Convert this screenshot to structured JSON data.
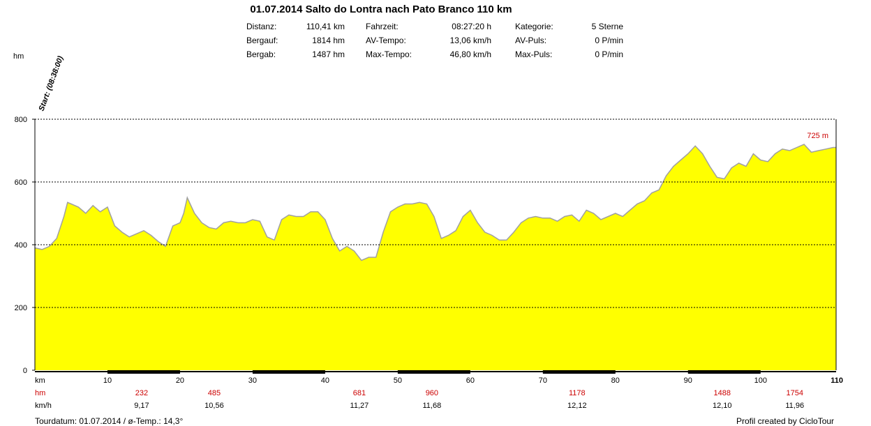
{
  "header": {
    "title": "01.07.2014 Salto do Lontra nach Pato Branco 110 km",
    "stats": [
      [
        {
          "label": "Distanz:",
          "value": "110,41 km"
        },
        {
          "label": "Fahrzeit:",
          "value": "08:27:20 h"
        },
        {
          "label": "Kategorie:",
          "value": "5 Sterne"
        }
      ],
      [
        {
          "label": "Bergauf:",
          "value": "1814 hm"
        },
        {
          "label": "AV-Tempo:",
          "value": "13,06 km/h"
        },
        {
          "label": "AV-Puls:",
          "value": "0 P/min"
        }
      ],
      [
        {
          "label": "Bergab:",
          "value": "1487 hm"
        },
        {
          "label": "Max-Tempo:",
          "value": "46,80 km/h"
        },
        {
          "label": "Max-Puls:",
          "value": "0 P/min"
        }
      ]
    ]
  },
  "start_label": "Start: (08:38:00)",
  "end_label": "725 m",
  "rows": {
    "km_label": "km",
    "hm_label": "hm",
    "speed_label": "km/h",
    "km_ticks": [
      "10",
      "20",
      "30",
      "40",
      "50",
      "60",
      "70",
      "80",
      "90",
      "100",
      "110"
    ],
    "hm_values": [
      "232",
      "485",
      "681",
      "960",
      "1178",
      "1488",
      "1754"
    ],
    "speed_values": [
      "9,17",
      "10,56",
      "11,27",
      "11,68",
      "12,12",
      "12,10",
      "11,96"
    ]
  },
  "footer": {
    "left": "Tourdatum: 01.07.2014  /  ø-Temp.: 14,3°",
    "right": "Profil created by CicloTour"
  },
  "colors": {
    "fill": "#ffff00",
    "line": "#a0a0a0",
    "accent": "#cc0000"
  },
  "chart_data": {
    "type": "area",
    "ylabel": "hm",
    "xlabel": "km",
    "ylim": [
      0,
      800
    ],
    "xlim": [
      0,
      110.41
    ],
    "yticks": [
      0,
      200,
      400,
      600,
      800
    ],
    "xticks": [
      10,
      20,
      30,
      40,
      50,
      60,
      70,
      80,
      90,
      100,
      110
    ],
    "grid": true,
    "x": [
      0,
      1,
      2,
      3,
      4,
      4.5,
      5,
      6,
      7,
      8,
      9,
      10,
      11,
      12,
      13,
      14,
      15,
      16,
      17,
      18,
      19,
      20,
      20.5,
      21,
      22,
      23,
      24,
      25,
      26,
      27,
      28,
      29,
      30,
      31,
      32,
      33,
      34,
      35,
      36,
      37,
      38,
      39,
      40,
      41,
      42,
      43,
      44,
      45,
      46,
      47,
      48,
      49,
      50,
      51,
      52,
      53,
      54,
      55,
      56,
      57,
      58,
      59,
      60,
      61,
      62,
      63,
      64,
      65,
      66,
      67,
      68,
      69,
      70,
      71,
      72,
      73,
      74,
      75,
      76,
      77,
      78,
      79,
      80,
      81,
      82,
      83,
      84,
      85,
      86,
      87,
      88,
      89,
      90,
      91,
      92,
      93,
      94,
      95,
      96,
      97,
      98,
      99,
      100,
      101,
      102,
      103,
      104,
      105,
      106,
      107,
      108,
      109,
      110,
      110.41
    ],
    "y": [
      390,
      385,
      395,
      420,
      490,
      535,
      530,
      520,
      500,
      525,
      505,
      520,
      460,
      440,
      425,
      435,
      445,
      430,
      410,
      395,
      460,
      470,
      500,
      550,
      500,
      470,
      455,
      450,
      470,
      475,
      470,
      470,
      480,
      475,
      425,
      415,
      480,
      495,
      490,
      490,
      505,
      505,
      480,
      420,
      380,
      395,
      380,
      350,
      360,
      360,
      440,
      505,
      520,
      530,
      530,
      535,
      530,
      490,
      420,
      430,
      445,
      490,
      510,
      470,
      440,
      430,
      415,
      415,
      440,
      470,
      485,
      490,
      485,
      485,
      475,
      490,
      495,
      475,
      510,
      500,
      480,
      490,
      500,
      490,
      510,
      530,
      540,
      565,
      575,
      620,
      650,
      670,
      690,
      715,
      690,
      650,
      615,
      610,
      645,
      660,
      650,
      690,
      670,
      665,
      690,
      705,
      700,
      710,
      720,
      695,
      700,
      705,
      710,
      710
    ]
  }
}
